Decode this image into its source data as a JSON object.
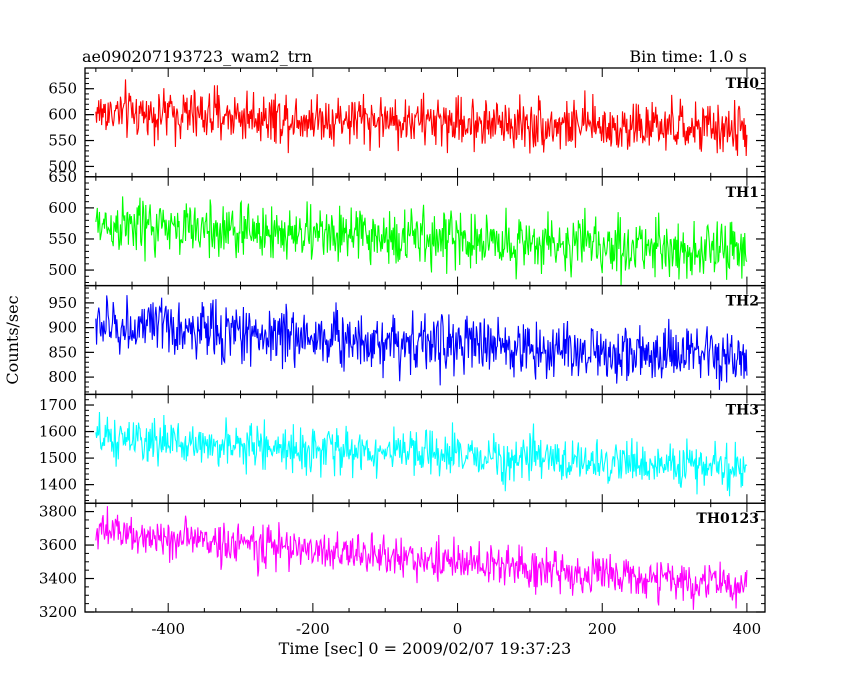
{
  "header": {
    "title": "ae090207193723_wam2_trn",
    "bin_time": "Bin time: 1.0 s"
  },
  "chart_data": {
    "type": "line",
    "xlabel": "Time [sec] 0 = 2009/02/07 19:37:23",
    "ylabel": "Counts/sec",
    "xlim": [
      -515,
      425
    ],
    "x_range": [
      -500,
      400
    ],
    "x_ticks": [
      -400,
      -200,
      0,
      200,
      400
    ],
    "x_minor_step": 50,
    "grid": false,
    "panels": [
      {
        "name": "TH0",
        "color": "#ff0000",
        "ylim": [
          480,
          690
        ],
        "y_ticks": [
          500,
          550,
          600,
          650
        ],
        "y_minor_step": 10,
        "trend_start": 605,
        "trend_end": 570,
        "noise_sd": 25
      },
      {
        "name": "TH1",
        "color": "#00ff00",
        "ylim": [
          475,
          650
        ],
        "y_ticks": [
          500,
          550,
          600,
          650
        ],
        "y_minor_step": 10,
        "trend_start": 572,
        "trend_end": 530,
        "noise_sd": 23
      },
      {
        "name": "TH2",
        "color": "#0000ff",
        "ylim": [
          765,
          985
        ],
        "y_ticks": [
          800,
          850,
          900,
          950
        ],
        "y_minor_step": 10,
        "trend_start": 905,
        "trend_end": 835,
        "noise_sd": 30
      },
      {
        "name": "TH3",
        "color": "#00ffff",
        "ylim": [
          1330,
          1740
        ],
        "y_ticks": [
          1400,
          1500,
          1600,
          1700
        ],
        "y_minor_step": 20,
        "trend_start": 1570,
        "trend_end": 1460,
        "noise_sd": 42
      },
      {
        "name": "TH0123",
        "color": "#ff00ff",
        "ylim": [
          3200,
          3850
        ],
        "y_ticks": [
          3200,
          3400,
          3600,
          3800
        ],
        "y_minor_step": 50,
        "trend_start": 3680,
        "trend_end": 3350,
        "noise_sd": 62
      }
    ]
  }
}
